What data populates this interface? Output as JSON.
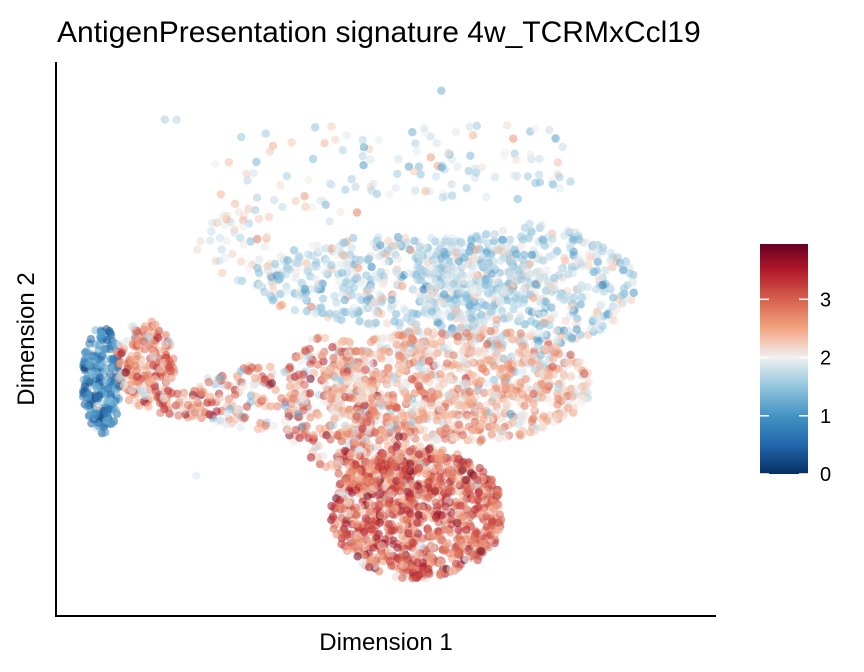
{
  "chart_data": {
    "type": "scatter",
    "title": "AntigenPresentation signature 4w_TCRMxCcl19",
    "xlabel": "Dimension 1",
    "ylabel": "Dimension 2",
    "x_ticks_shown": false,
    "y_ticks_shown": false,
    "grid": false,
    "point_alpha": 0.55,
    "color_scale": {
      "name": "RdBu (reversed)",
      "domain": [
        0,
        3.95
      ],
      "ticks": [
        0,
        1,
        2,
        3
      ],
      "tick_labels": [
        "0",
        "1",
        "2",
        "3"
      ],
      "stops": [
        {
          "value": 0.0,
          "color": "#053061"
        },
        {
          "value": 0.5,
          "color": "#2166ac"
        },
        {
          "value": 1.0,
          "color": "#4393c3"
        },
        {
          "value": 1.5,
          "color": "#92c5de"
        },
        {
          "value": 2.0,
          "color": "#f0f0f0"
        },
        {
          "value": 2.5,
          "color": "#f4a582"
        },
        {
          "value": 3.0,
          "color": "#d6604d"
        },
        {
          "value": 3.5,
          "color": "#b2182b"
        },
        {
          "value": 3.95,
          "color": "#67001f"
        }
      ],
      "legend_placement": "right"
    },
    "regions": [
      {
        "cx": -7.2,
        "cy": 1.0,
        "rx": 0.5,
        "ry": 1.3,
        "n": 230,
        "mean": 0.9,
        "sd": 0.45
      },
      {
        "cx": -6.1,
        "cy": 1.4,
        "rx": 0.75,
        "ry": 1.05,
        "n": 230,
        "mean": 2.6,
        "sd": 0.5
      },
      {
        "cx": -5.0,
        "cy": 0.4,
        "rx": 0.8,
        "ry": 0.4,
        "n": 55,
        "mean": 2.9,
        "sd": 0.5
      },
      {
        "cx": -3.4,
        "cy": 0.6,
        "rx": 1.4,
        "ry": 0.8,
        "n": 120,
        "mean": 2.4,
        "sd": 0.55
      },
      {
        "cx": -1.4,
        "cy": 0.5,
        "rx": 1.3,
        "ry": 1.6,
        "n": 220,
        "mean": 2.6,
        "sd": 0.55
      },
      {
        "cx": 0.3,
        "cy": 3.4,
        "rx": 3.6,
        "ry": 1.1,
        "n": 520,
        "mean": 1.7,
        "sd": 0.35
      },
      {
        "cx": 3.5,
        "cy": 3.3,
        "rx": 2.8,
        "ry": 1.5,
        "n": 460,
        "mean": 1.7,
        "sd": 0.35
      },
      {
        "cx": 1.8,
        "cy": 0.9,
        "rx": 3.4,
        "ry": 1.4,
        "n": 900,
        "mean": 2.35,
        "sd": 0.4
      },
      {
        "cx": 0.8,
        "cy": -2.2,
        "rx": 2.2,
        "ry": 1.6,
        "n": 950,
        "mean": 2.95,
        "sd": 0.45
      },
      {
        "cx": -0.2,
        "cy": -0.8,
        "rx": 1.1,
        "ry": 1.1,
        "n": 180,
        "mean": 2.8,
        "sd": 0.5
      },
      {
        "cx": -2.0,
        "cy": 6.0,
        "rx": 2.5,
        "ry": 1.2,
        "n": 55,
        "mean": 1.9,
        "sd": 0.3
      },
      {
        "cx": 2.5,
        "cy": 6.3,
        "rx": 2.6,
        "ry": 1.0,
        "n": 75,
        "mean": 1.8,
        "sd": 0.3
      },
      {
        "cx": -3.7,
        "cy": 4.3,
        "rx": 1.1,
        "ry": 0.9,
        "n": 45,
        "mean": 2.0,
        "sd": 0.3
      }
    ],
    "outliers": [
      {
        "x": -5.6,
        "y": 7.3,
        "value": 1.6
      },
      {
        "x": -5.3,
        "y": 7.3,
        "value": 1.7
      },
      {
        "x": -4.8,
        "y": -1.3,
        "value": 1.9
      },
      {
        "x": 1.4,
        "y": 8.0,
        "value": 1.3
      }
    ]
  }
}
